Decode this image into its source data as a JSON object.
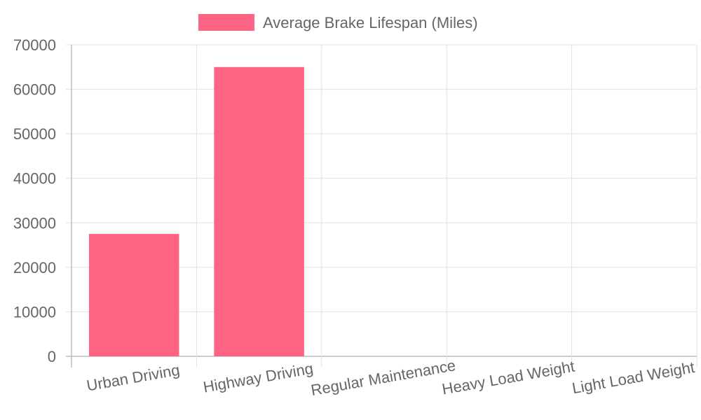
{
  "chart_data": {
    "type": "bar",
    "title": "",
    "xlabel": "",
    "ylabel": "",
    "categories": [
      "Urban Driving",
      "Highway Driving",
      "Regular Maintenance",
      "Heavy Load Weight",
      "Light Load Weight"
    ],
    "series": [
      {
        "name": "Average Brake Lifespan (Miles)",
        "values": [
          27500,
          65000,
          0,
          0,
          0
        ],
        "color": "#ff6384"
      }
    ],
    "ylim": [
      0,
      70000
    ],
    "yticks": [
      0,
      10000,
      20000,
      30000,
      40000,
      50000,
      60000,
      70000
    ],
    "grid": true,
    "legend_position": "top-center"
  }
}
